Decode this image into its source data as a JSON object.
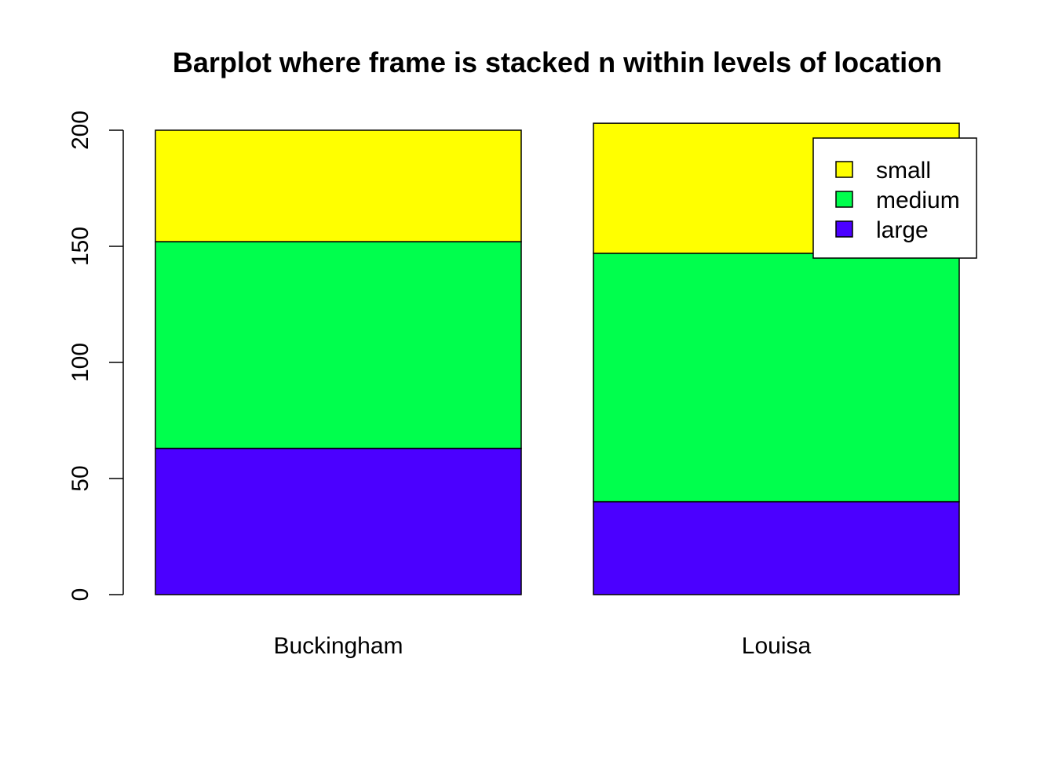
{
  "chart_data": {
    "type": "bar",
    "stacked": true,
    "title": "Barplot where frame is stacked n within levels of location",
    "xlabel": "",
    "ylabel": "",
    "categories": [
      "Buckingham",
      "Louisa"
    ],
    "series": [
      {
        "name": "large",
        "values": [
          63,
          40
        ],
        "color": "#4B00FF"
      },
      {
        "name": "medium",
        "values": [
          89,
          107
        ],
        "color": "#00FF4D"
      },
      {
        "name": "small",
        "values": [
          48,
          56
        ],
        "color": "#FFFF00"
      }
    ],
    "ylim": [
      0,
      200
    ],
    "yticks": [
      0,
      50,
      100,
      150,
      200
    ],
    "grid": false,
    "legend": {
      "position": "top-right",
      "entries": [
        "small",
        "medium",
        "large"
      ]
    }
  }
}
